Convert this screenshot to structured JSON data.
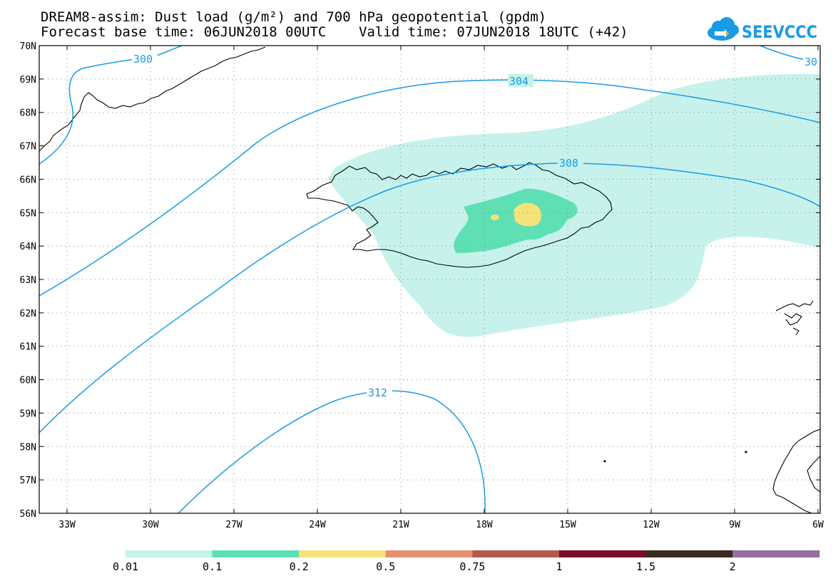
{
  "header": {
    "title_line1": "DREAM8-assim: Dust load (g/m²) and 700 hPa geopotential (gpdm)",
    "title_line2": "Forecast base time: 06JUN2018 00UTC    Valid time: 07JUN2018 18UTC (+42)",
    "logo_text": "SEEVCCC"
  },
  "map": {
    "lat_labels": [
      "70N",
      "69N",
      "68N",
      "67N",
      "66N",
      "65N",
      "64N",
      "63N",
      "62N",
      "61N",
      "60N",
      "59N",
      "58N",
      "57N",
      "56N"
    ],
    "lon_labels": [
      "33W",
      "30W",
      "27W",
      "24W",
      "21W",
      "18W",
      "15W",
      "12W",
      "9W",
      "6W"
    ],
    "contour_labels": [
      "300",
      "304",
      "308",
      "312",
      "30"
    ],
    "colors": {
      "contour": "#1a9be6",
      "dust_0_01": "#c6f2eb",
      "dust_0_1": "#5ee0b4",
      "dust_0_2": "#f5e37a",
      "coast": "#000000"
    }
  },
  "colorbar": {
    "labels": [
      "0.01",
      "0.1",
      "0.2",
      "0.5",
      "0.75",
      "1",
      "1.5",
      "2"
    ],
    "colors": [
      "#c6f2eb",
      "#5ee0b4",
      "#f5e37a",
      "#e59170",
      "#b55a4a",
      "#7a0e2c",
      "#3d2a1e",
      "#96709f"
    ]
  }
}
